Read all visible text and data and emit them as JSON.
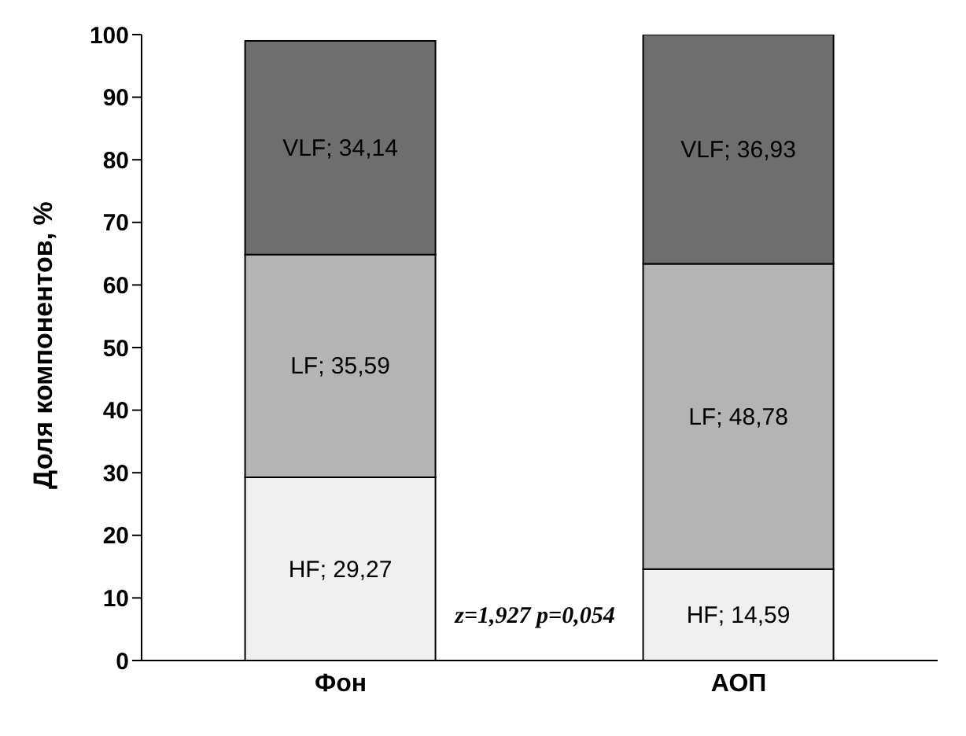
{
  "chart_data": {
    "type": "bar",
    "stacked": true,
    "ylabel": "Доля компонентов, %",
    "categories": [
      "Фон",
      "АОП"
    ],
    "series": [
      {
        "color": "#f0f0f0",
        "values": [
          29.27,
          14.59
        ],
        "value_labels": [
          "HF; 29,27",
          "HF; 14,59"
        ]
      },
      {
        "color": "#b4b4b4",
        "values": [
          35.59,
          48.78
        ],
        "value_labels": [
          "LF; 35,59",
          "LF; 48,78"
        ]
      },
      {
        "color": "#6e6e6e",
        "values": [
          34.14,
          36.93
        ],
        "value_labels": [
          "VLF; 34,14",
          "VLF; 36,93"
        ]
      }
    ],
    "ylim": [
      0,
      100
    ],
    "yticks": [
      0,
      10,
      20,
      30,
      40,
      50,
      60,
      70,
      80,
      90,
      100
    ],
    "grid": false,
    "legend": false,
    "annotations": [
      "z=1,927 p=0,054"
    ]
  }
}
